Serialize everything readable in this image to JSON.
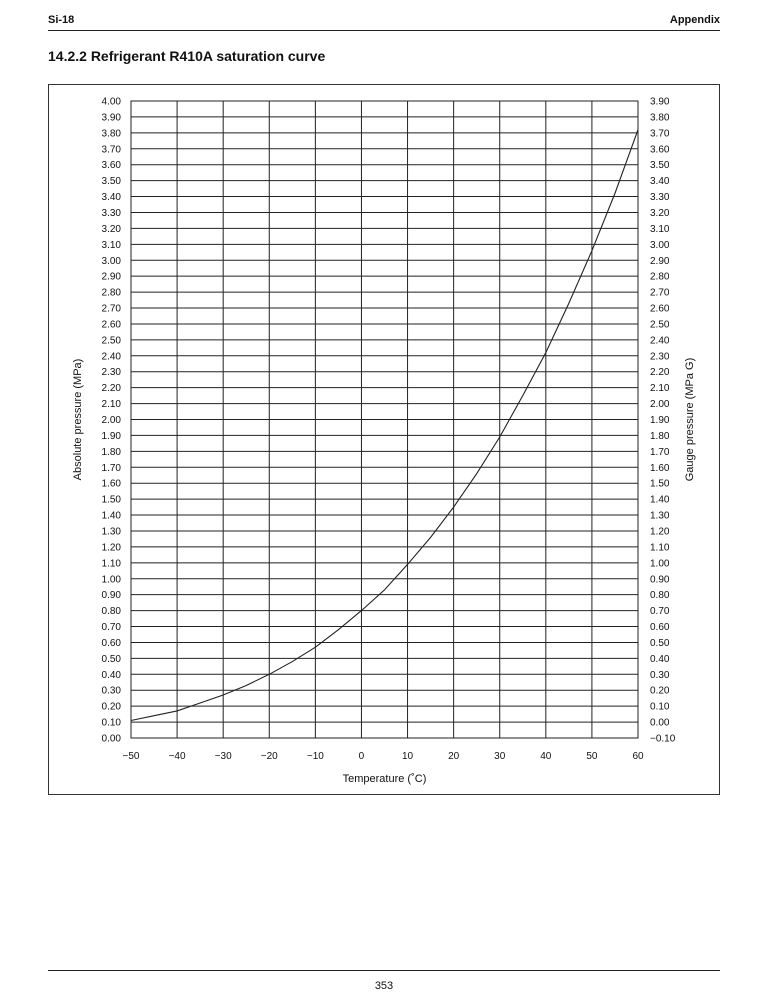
{
  "header": {
    "left": "Si-18",
    "right": "Appendix"
  },
  "section_title": "14.2.2 Refrigerant R410A saturation curve",
  "footer": {
    "page_number": "353"
  },
  "chart_data": {
    "type": "line",
    "title": "",
    "xlabel": "Temperature (˚C)",
    "ylabel": "Absolute pressure (MPa)",
    "y2label": "Gauge pressure (MPa G)",
    "xlim": [
      -50,
      60
    ],
    "ylim": [
      0.0,
      4.0
    ],
    "y2lim": [
      -0.1,
      3.9
    ],
    "grid": true,
    "x_ticks": [
      "−50",
      "−40",
      "−30",
      "−20",
      "−10",
      "0",
      "10",
      "20",
      "30",
      "40",
      "50",
      "60"
    ],
    "y_ticks": [
      "0.00",
      "0.10",
      "0.20",
      "0.30",
      "0.40",
      "0.50",
      "0.60",
      "0.70",
      "0.80",
      "0.90",
      "1.00",
      "1.10",
      "1.20",
      "1.30",
      "1.40",
      "1.50",
      "1.60",
      "1.70",
      "1.80",
      "1.90",
      "2.00",
      "2.10",
      "2.20",
      "2.30",
      "2.40",
      "2.50",
      "2.60",
      "2.70",
      "2.80",
      "2.90",
      "3.00",
      "3.10",
      "3.20",
      "3.30",
      "3.40",
      "3.50",
      "3.60",
      "3.70",
      "3.80",
      "3.90",
      "4.00"
    ],
    "y2_ticks": [
      "−0.10",
      "0.00",
      "0.10",
      "0.20",
      "0.30",
      "0.40",
      "0.50",
      "0.60",
      "0.70",
      "0.80",
      "0.90",
      "1.00",
      "1.10",
      "1.20",
      "1.30",
      "1.40",
      "1.50",
      "1.60",
      "1.70",
      "1.80",
      "1.90",
      "2.00",
      "2.10",
      "2.20",
      "2.30",
      "2.40",
      "2.50",
      "2.60",
      "2.70",
      "2.80",
      "2.90",
      "3.00",
      "3.10",
      "3.20",
      "3.30",
      "3.40",
      "3.50",
      "3.60",
      "3.70",
      "3.80",
      "3.90"
    ],
    "series": [
      {
        "x": [
          -50,
          -45,
          -40,
          -35,
          -30,
          -25,
          -20,
          -15,
          -10,
          -5,
          0,
          5,
          10,
          15,
          20,
          25,
          30,
          35,
          40,
          45,
          50,
          55,
          60
        ],
        "y": [
          0.11,
          0.14,
          0.17,
          0.22,
          0.27,
          0.33,
          0.4,
          0.48,
          0.57,
          0.68,
          0.8,
          0.93,
          1.09,
          1.26,
          1.45,
          1.66,
          1.89,
          2.15,
          2.42,
          2.73,
          3.06,
          3.42,
          3.82
        ],
        "color": "#222222"
      }
    ]
  }
}
